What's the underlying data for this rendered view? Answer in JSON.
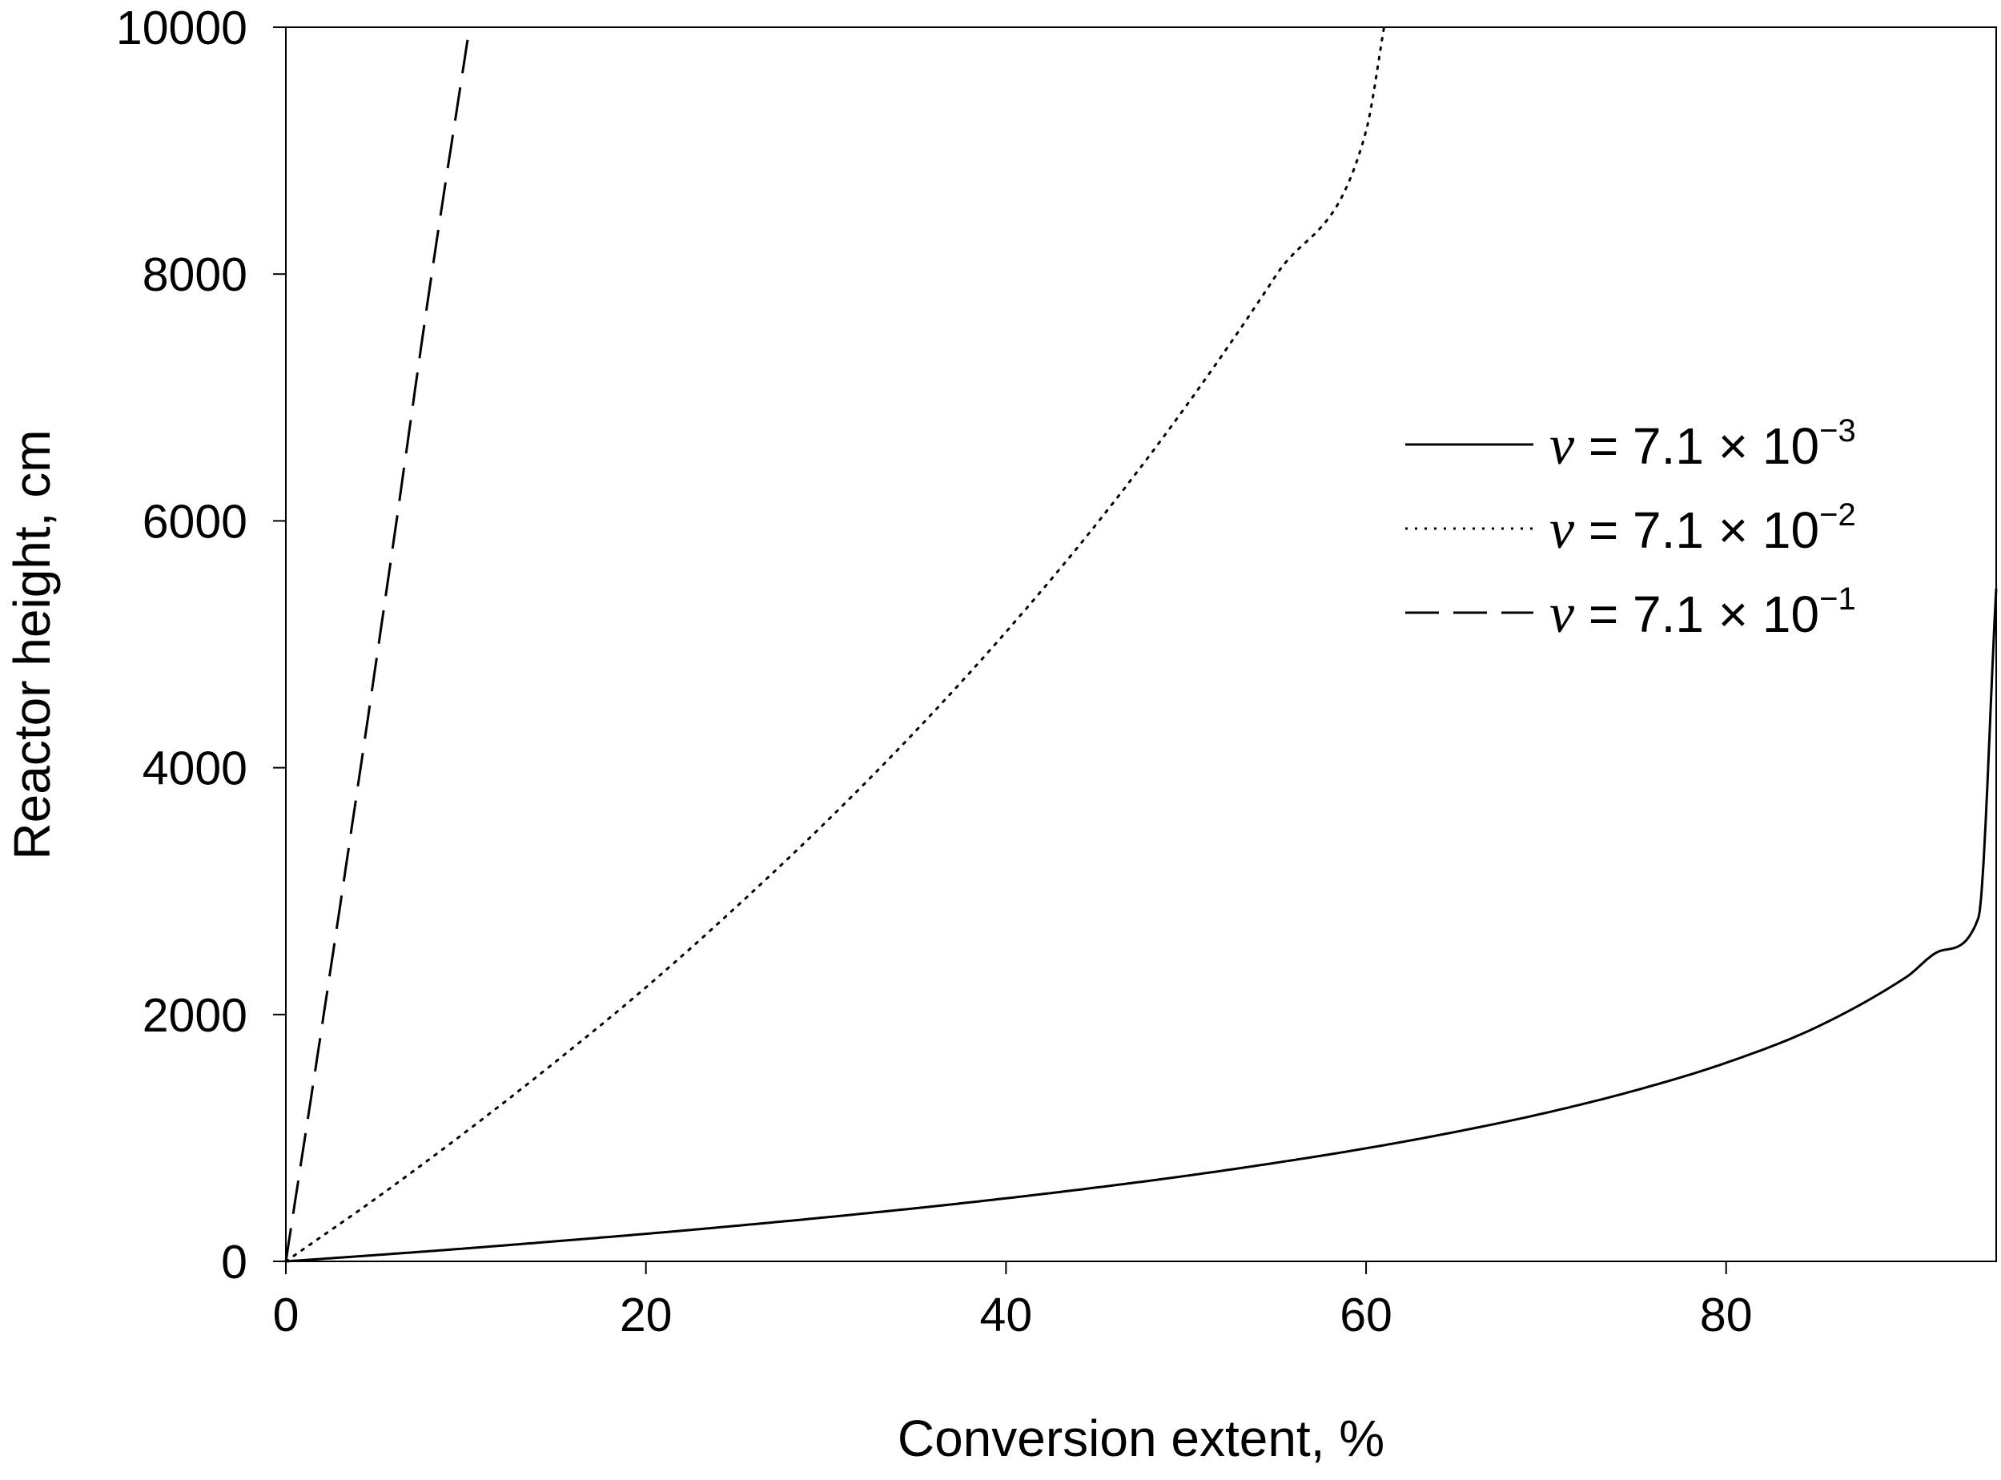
{
  "chart_data": {
    "type": "line",
    "title": "",
    "xlabel": "Conversion extent, %",
    "ylabel": "Reactor height, cm",
    "xlim": [
      0,
      95
    ],
    "ylim": [
      0,
      10000
    ],
    "xticks": [
      0,
      20,
      40,
      60,
      80
    ],
    "yticks": [
      0,
      2000,
      4000,
      6000,
      8000,
      10000
    ],
    "xtick_labels": [
      "0",
      "20",
      "40",
      "60",
      "80"
    ],
    "ytick_labels": [
      "0",
      "2000",
      "4000",
      "6000",
      "8000",
      "10000"
    ],
    "grid": false,
    "legend_position": "right",
    "series": [
      {
        "name": "ν = 7.1 × 10⁻³",
        "legend": {
          "symbol": "ν",
          "text": " = 7.1 × 10",
          "exponent": "−3"
        },
        "line_style": "solid",
        "x": [
          0,
          5,
          10,
          15,
          20,
          25,
          30,
          35,
          40,
          45,
          50,
          55,
          60,
          65,
          70,
          75,
          80,
          85,
          90,
          92,
          94,
          95
        ],
        "y": [
          0,
          51,
          105,
          163,
          223,
          288,
          357,
          431,
          511,
          598,
          693,
          799,
          916,
          1050,
          1204,
          1387,
          1609,
          1896,
          2303,
          2520,
          2778,
          5450
        ]
      },
      {
        "name": "ν = 7.1 × 10⁻²",
        "legend": {
          "symbol": "ν",
          "text": " = 7.1 × 10",
          "exponent": "−2"
        },
        "line_style": "dotted",
        "x": [
          0,
          5,
          10,
          15,
          20,
          25,
          30,
          35,
          40,
          45,
          50,
          55,
          60,
          61
        ],
        "y": [
          0,
          510,
          1050,
          1620,
          2220,
          2870,
          3560,
          4300,
          5100,
          5970,
          6930,
          7990,
          9160,
          10000
        ]
      },
      {
        "name": "ν = 7.1 × 10⁻¹",
        "legend": {
          "symbol": "ν",
          "text": " = 7.1 × 10",
          "exponent": "−1"
        },
        "line_style": "dashed",
        "x": [
          0,
          2,
          4,
          6,
          8,
          10.2
        ],
        "y": [
          0,
          1900,
          3850,
          5850,
          7900,
          10000
        ]
      }
    ]
  }
}
